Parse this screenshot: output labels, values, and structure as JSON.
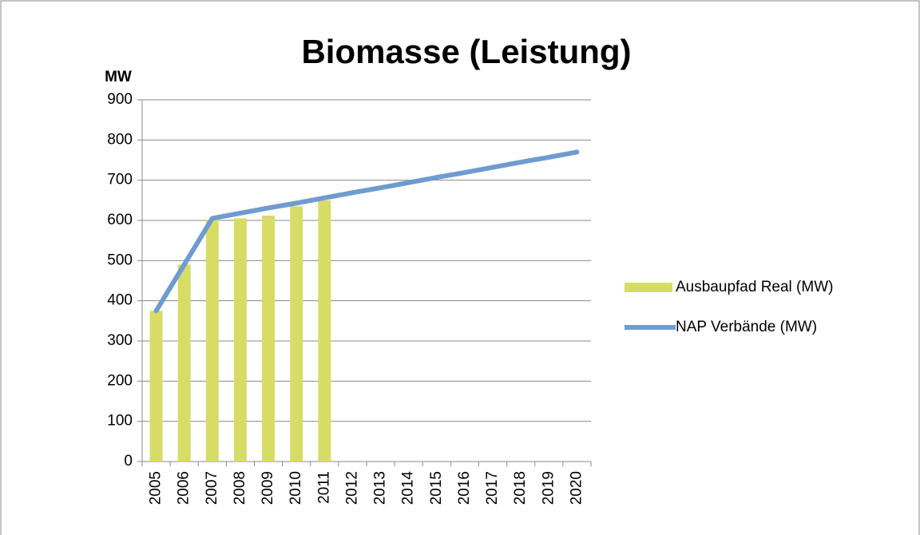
{
  "chart_data": {
    "type": "bar-line",
    "title": "Biomasse (Leistung)",
    "y_axis_label": "MW",
    "categories": [
      "2005",
      "2006",
      "2007",
      "2008",
      "2009",
      "2010",
      "2011",
      "2012",
      "2013",
      "2014",
      "2015",
      "2016",
      "2017",
      "2018",
      "2019",
      "2020"
    ],
    "series": [
      {
        "name": "Ausbaupfad Real (MW)",
        "type": "bar",
        "color": "#d7dc67",
        "values": [
          375,
          490,
          602,
          605,
          612,
          635,
          650,
          null,
          null,
          null,
          null,
          null,
          null,
          null,
          null,
          null
        ]
      },
      {
        "name": "NAP Verbände (MW)",
        "type": "line",
        "color": "#6f9bcf",
        "values": [
          375,
          490,
          605,
          618,
          631,
          643,
          656,
          669,
          681,
          694,
          707,
          719,
          732,
          745,
          757,
          770
        ]
      }
    ],
    "ylim": [
      0,
      900
    ],
    "yticks": [
      0,
      100,
      200,
      300,
      400,
      500,
      600,
      700,
      800,
      900
    ],
    "grid": true,
    "legend": "right"
  }
}
